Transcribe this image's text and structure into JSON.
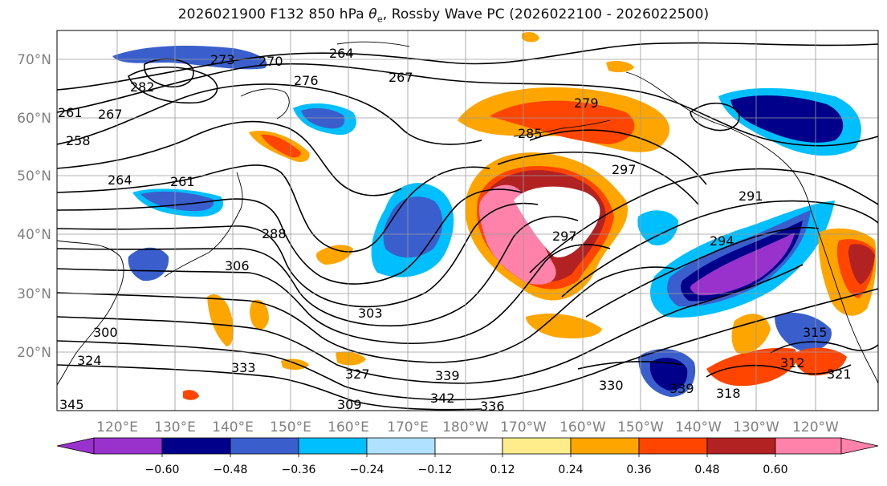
{
  "title": {
    "prefix": "2026021900 F132 850 hPa ",
    "symbol": "θ",
    "subscript": "e",
    "suffix": ", Rossby Wave PC (2026022100 - 2026022500)"
  },
  "map": {
    "lat_labels": [
      "70°N",
      "60°N",
      "50°N",
      "40°N",
      "30°N",
      "20°N"
    ],
    "lon_labels": [
      "120°E",
      "130°E",
      "140°E",
      "150°E",
      "160°E",
      "170°E",
      "180°W",
      "170°W",
      "160°W",
      "150°W",
      "140°W",
      "130°W",
      "120°W"
    ],
    "label_color": "#808080"
  },
  "contour_labels": [
    "264",
    "273",
    "270",
    "267",
    "276",
    "282",
    "261",
    "267",
    "258",
    "264",
    "261",
    "279",
    "285",
    "297",
    "291",
    "288",
    "306",
    "294",
    "297",
    "303",
    "300",
    "324",
    "333",
    "327",
    "339",
    "342",
    "336",
    "330",
    "339",
    "318",
    "321",
    "315",
    "312",
    "345",
    "309"
  ],
  "colorbar": {
    "ticks": [
      "−0.60",
      "−0.48",
      "−0.36",
      "−0.24",
      "−0.12",
      "0.12",
      "0.24",
      "0.36",
      "0.48",
      "0.60"
    ],
    "colors": [
      "#9932cc",
      "#00008b",
      "#3a5fcd",
      "#00bfff",
      "#b0e2ff",
      "#ffffff",
      "#ffec8b",
      "#ffa500",
      "#ff4500",
      "#b22222",
      "#ff82ab"
    ]
  }
}
